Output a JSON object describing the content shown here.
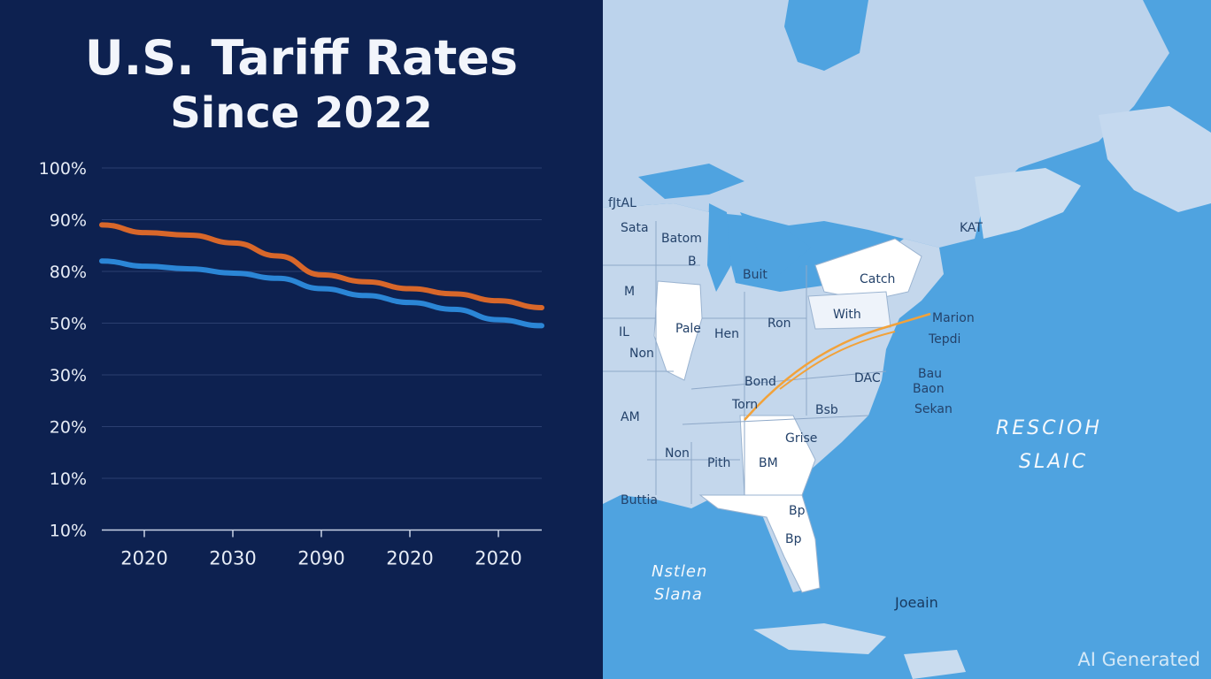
{
  "title": "U.S. Tariff Rates",
  "subtitle": "Since 2022",
  "watermark": "AI Generated",
  "colors": {
    "background": "#0d2150",
    "orange_series": "#d8672a",
    "blue_series": "#2b86d6",
    "grid": "#2b3f70",
    "ocean": "#4fa3e0"
  },
  "chart_data": {
    "type": "line",
    "title": "U.S. Tariff Rates Since 2022",
    "y_tick_labels": [
      "100%",
      "90%",
      "80%",
      "50%",
      "30%",
      "20%",
      "10%",
      "10%"
    ],
    "x_tick_labels": [
      "2020",
      "2030",
      "2090",
      "2020",
      "2020"
    ],
    "grid": true,
    "series": [
      {
        "color": "#d8672a",
        "values": [
          89,
          87.5,
          87,
          85.5,
          83,
          78,
          74,
          70,
          67,
          63,
          59
        ]
      },
      {
        "color": "#2b86d6",
        "values": [
          82,
          81,
          80.5,
          79,
          76,
          70,
          66,
          62,
          58,
          52,
          49
        ]
      }
    ]
  },
  "map": {
    "ocean_labels": [
      "RESCIOH",
      "SLAIC",
      "Nstlen",
      "Slana",
      "Joeain"
    ],
    "place_labels": [
      {
        "text": "fJtAL"
      },
      {
        "text": "Sata"
      },
      {
        "text": "Batom"
      },
      {
        "text": "B"
      },
      {
        "text": "Buit"
      },
      {
        "text": "M"
      },
      {
        "text": "Pale"
      },
      {
        "text": "Hen"
      },
      {
        "text": "Ron"
      },
      {
        "text": "Catch"
      },
      {
        "text": "With"
      },
      {
        "text": "Marion"
      },
      {
        "text": "Tepdi"
      },
      {
        "text": "DAC"
      },
      {
        "text": "Bond"
      },
      {
        "text": "Bau"
      },
      {
        "text": "Torn"
      },
      {
        "text": "Bsb"
      },
      {
        "text": "Baon"
      },
      {
        "text": "Sekan"
      },
      {
        "text": "Grise"
      },
      {
        "text": "BM"
      },
      {
        "text": "Pith"
      },
      {
        "text": "Non"
      },
      {
        "text": "Buttia"
      },
      {
        "text": "KAT"
      },
      {
        "text": "Non"
      },
      {
        "text": "IL"
      },
      {
        "text": "AM"
      },
      {
        "text": "Bp"
      },
      {
        "text": "Bp"
      }
    ]
  }
}
